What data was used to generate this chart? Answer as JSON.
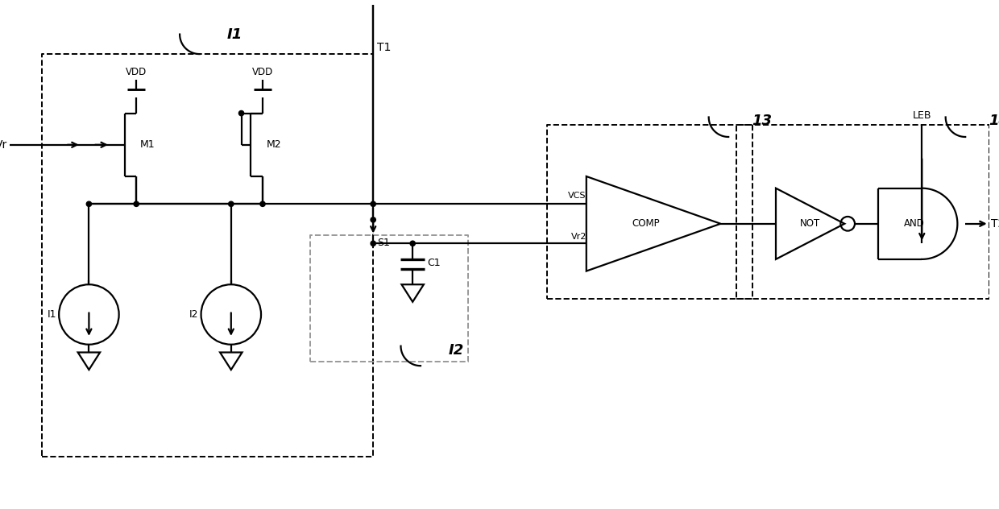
{
  "bg_color": "#ffffff",
  "lc": "#000000",
  "lw": 1.6,
  "dlw": 1.4,
  "figsize": [
    12.4,
    6.32
  ],
  "dpi": 100,
  "xlim": [
    0,
    124
  ],
  "ylim": [
    0,
    63.2
  ]
}
